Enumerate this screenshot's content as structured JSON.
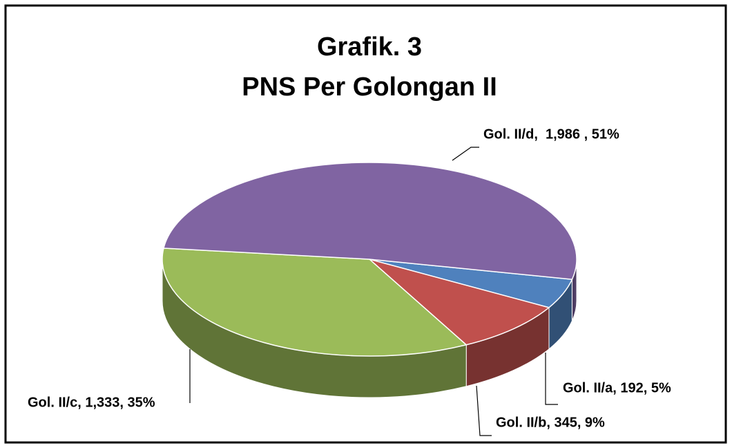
{
  "chart_data": {
    "type": "pie3d",
    "title": "Grafik. 3",
    "subtitle": "PNS Per Golongan II",
    "values": [
      192,
      345,
      1333,
      1986
    ],
    "value_labels": [
      "Gol. II/a, 192, 5%",
      "Gol. II/b, 345, 9%",
      "Gol. II/c, 1,333, 35%",
      "Gol. II/d,  1,986 , 51%"
    ],
    "colors": [
      "#4f81bd",
      "#c0504d",
      "#9bbb59",
      "#8064a2"
    ]
  }
}
